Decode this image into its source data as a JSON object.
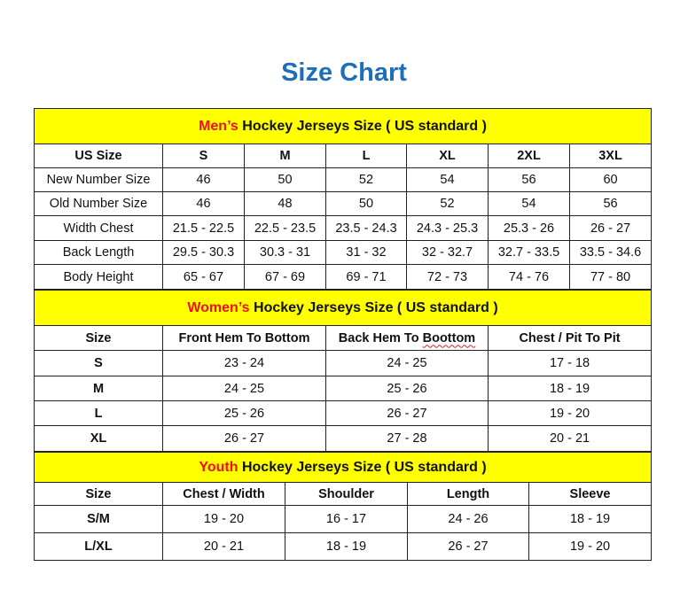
{
  "title": "Size Chart",
  "colors": {
    "title": "#1f6fb8",
    "section_bg": "#ffff00",
    "section_accent": "#ee1111"
  },
  "men": {
    "heading_accent": "Men’s",
    "heading_rest": " Hockey Jerseys Size ( US standard )",
    "columns": [
      "US Size",
      "S",
      "M",
      "L",
      "XL",
      "2XL",
      "3XL"
    ],
    "rows": [
      [
        "New Number Size",
        "46",
        "50",
        "52",
        "54",
        "56",
        "60"
      ],
      [
        "Old Number Size",
        "46",
        "48",
        "50",
        "52",
        "54",
        "56"
      ],
      [
        "Width Chest",
        "21.5 - 22.5",
        "22.5 - 23.5",
        "23.5 - 24.3",
        "24.3 - 25.3",
        "25.3 - 26",
        "26 - 27"
      ],
      [
        "Back Length",
        "29.5 - 30.3",
        "30.3 - 31",
        "31 - 32",
        "32 - 32.7",
        "32.7 - 33.5",
        "33.5 - 34.6"
      ],
      [
        "Body Height",
        "65 - 67",
        "67 - 69",
        "69 - 71",
        "72 - 73",
        "74 - 76",
        "77 - 80"
      ]
    ]
  },
  "women": {
    "heading_accent": "Women’s",
    "heading_rest": " Hockey Jerseys Size ( US standard )",
    "columns": [
      "Size",
      "Front Hem To Bottom",
      "Back Hem To Boottom",
      "Chest / Pit To Pit"
    ],
    "rows": [
      [
        "S",
        "23 - 24",
        "24 - 25",
        "17 - 18"
      ],
      [
        "M",
        "24 - 25",
        "25 - 26",
        "18 - 19"
      ],
      [
        "L",
        "25 - 26",
        "26 - 27",
        "19 - 20"
      ],
      [
        "XL",
        "26 - 27",
        "27 - 28",
        "20 - 21"
      ]
    ]
  },
  "youth": {
    "heading_accent": "Youth",
    "heading_rest": " Hockey Jerseys Size ( US standard )",
    "columns": [
      "Size",
      "Chest / Width",
      "Shoulder",
      "Length",
      "Sleeve"
    ],
    "rows": [
      [
        "S/M",
        "19 - 20",
        "16 - 17",
        "24 - 26",
        "18 - 19"
      ],
      [
        "L/XL",
        "20 - 21",
        "18 - 19",
        "26 - 27",
        "19 - 20"
      ]
    ]
  }
}
